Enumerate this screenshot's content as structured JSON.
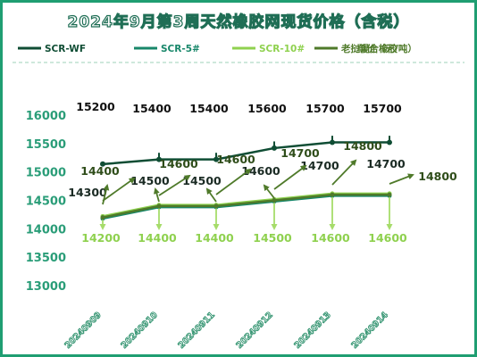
{
  "chart_data": {
    "type": "line",
    "title": "2024年9月第3周天然橡胶网现货价格（含税）",
    "unit_note": "单价（元/吨）",
    "categories": [
      "20240909",
      "20240910",
      "20240911",
      "20240912",
      "20240913",
      "20240914"
    ],
    "ylim": [
      13000,
      16000
    ],
    "yticks": [
      13000,
      13500,
      14000,
      14500,
      15000,
      15500,
      16000
    ],
    "legend_position": "top",
    "grid": false,
    "series": [
      {
        "name": "SCR-WF",
        "color": "#0f4d34",
        "values": [
          15200,
          15400,
          15400,
          15600,
          15700,
          15700
        ]
      },
      {
        "name": "SCR-5#",
        "color": "#18876a",
        "values": [
          14300,
          14500,
          14500,
          14600,
          14700,
          14700
        ]
      },
      {
        "name": "SCR-10#",
        "color": "#8fd14f",
        "values": [
          14200,
          14400,
          14400,
          14500,
          14600,
          14600
        ]
      },
      {
        "name": "老挝混合橡胶",
        "color": "#4f7a2a",
        "values": [
          14400,
          14600,
          14600,
          14700,
          14800,
          14800
        ]
      }
    ]
  }
}
